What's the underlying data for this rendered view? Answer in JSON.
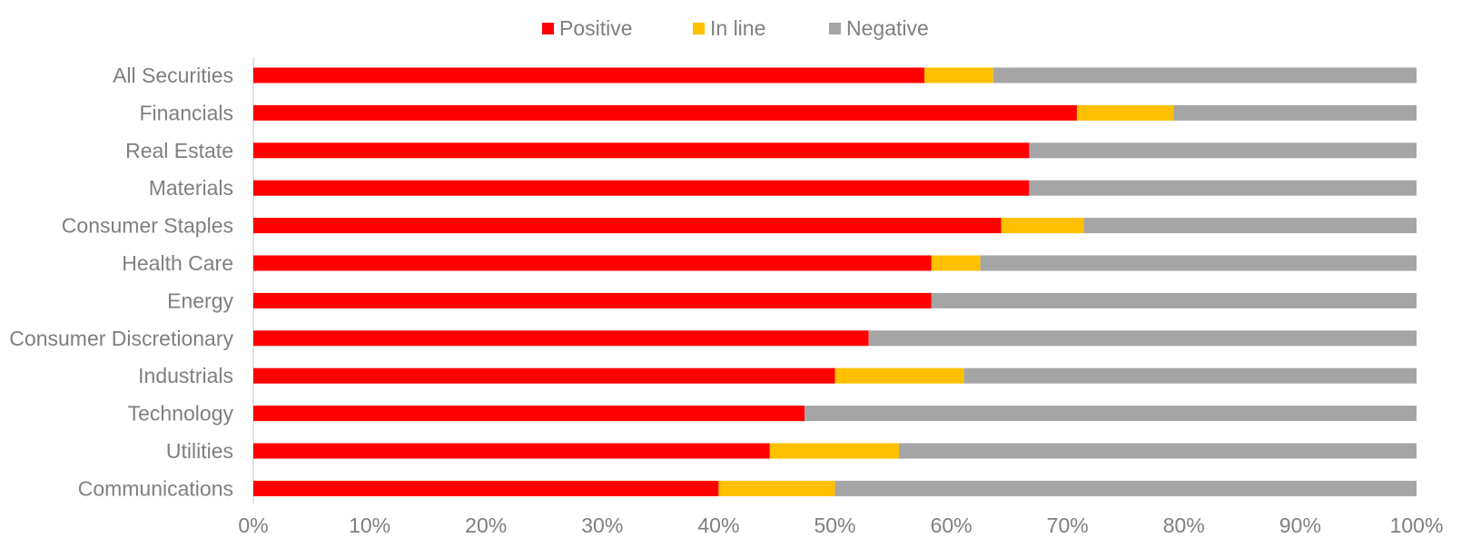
{
  "chart_data": {
    "type": "bar",
    "orientation": "horizontal",
    "stacked": "percent",
    "categories": [
      "All Securities",
      "Financials",
      "Real Estate",
      "Materials",
      "Consumer Staples",
      "Health Care",
      "Energy",
      "Consumer Discretionary",
      "Industrials",
      "Technology",
      "Utilities",
      "Communications"
    ],
    "series": [
      {
        "name": "Positive",
        "color": "#ff0000",
        "values": [
          57.7,
          70.8,
          66.7,
          66.7,
          64.3,
          58.3,
          58.3,
          52.9,
          50.0,
          47.4,
          44.4,
          40.0
        ]
      },
      {
        "name": "In line",
        "color": "#ffc000",
        "values": [
          5.9,
          8.3,
          0,
          0,
          7.1,
          4.2,
          0,
          0,
          11.1,
          0,
          11.1,
          10.0
        ]
      },
      {
        "name": "Negative",
        "color": "#a5a5a5",
        "values": [
          36.4,
          20.9,
          33.3,
          33.3,
          28.6,
          37.5,
          41.7,
          47.1,
          38.9,
          52.6,
          44.5,
          50.0
        ]
      }
    ],
    "xlim": [
      0,
      100
    ],
    "x_ticks": [
      "0%",
      "10%",
      "20%",
      "30%",
      "40%",
      "50%",
      "60%",
      "70%",
      "80%",
      "90%",
      "100%"
    ],
    "legend_position": "top",
    "grid": false
  }
}
